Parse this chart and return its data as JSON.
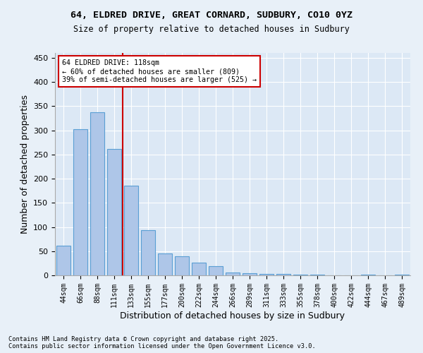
{
  "title1": "64, ELDRED DRIVE, GREAT CORNARD, SUDBURY, CO10 0YZ",
  "title2": "Size of property relative to detached houses in Sudbury",
  "xlabel": "Distribution of detached houses by size in Sudbury",
  "ylabel": "Number of detached properties",
  "categories": [
    "44sqm",
    "66sqm",
    "88sqm",
    "111sqm",
    "133sqm",
    "155sqm",
    "177sqm",
    "200sqm",
    "222sqm",
    "244sqm",
    "266sqm",
    "289sqm",
    "311sqm",
    "333sqm",
    "355sqm",
    "378sqm",
    "400sqm",
    "422sqm",
    "444sqm",
    "467sqm",
    "489sqm"
  ],
  "values": [
    62,
    302,
    338,
    262,
    185,
    93,
    46,
    40,
    27,
    19,
    6,
    4,
    3,
    3,
    2,
    1,
    0,
    0,
    1,
    0,
    1
  ],
  "bar_color": "#aec6e8",
  "bar_edge_color": "#5a9fd4",
  "vline_color": "#cc0000",
  "annotation_text": "64 ELDRED DRIVE: 118sqm\n← 60% of detached houses are smaller (809)\n39% of semi-detached houses are larger (525) →",
  "annotation_box_color": "#ffffff",
  "annotation_box_edge": "#cc0000",
  "ylim": [
    0,
    460
  ],
  "yticks": [
    0,
    50,
    100,
    150,
    200,
    250,
    300,
    350,
    400,
    450
  ],
  "footer1": "Contains HM Land Registry data © Crown copyright and database right 2025.",
  "footer2": "Contains public sector information licensed under the Open Government Licence v3.0.",
  "bg_color": "#e8f0f8",
  "plot_bg_color": "#dce8f5"
}
